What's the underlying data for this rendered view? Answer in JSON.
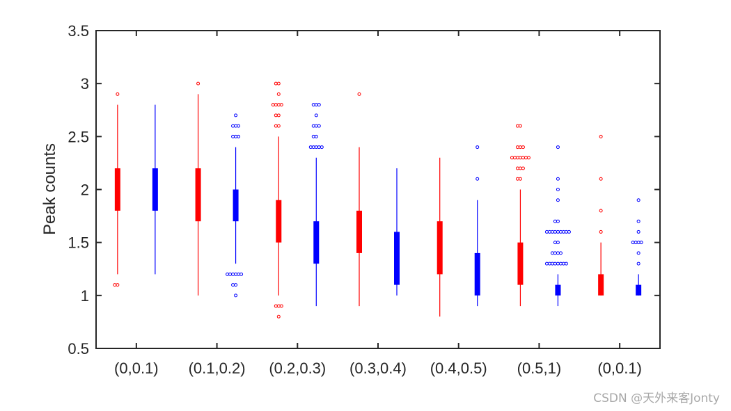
{
  "chart_data": {
    "type": "boxplot",
    "title": "",
    "xlabel": "",
    "ylabel": "Peak counts",
    "ylim": [
      0.5,
      3.5
    ],
    "yticks": [
      "0.5",
      "1",
      "1.5",
      "2",
      "2.5",
      "3",
      "3.5"
    ],
    "grid": false,
    "categories": [
      "(0,0.1)",
      "(0.1,0.2)",
      "(0.2,0.3)",
      "(0.3,0.4)",
      "(0.4,0.5)",
      "(0.5,1)",
      "(0,0.1)"
    ],
    "series": [
      {
        "color": "#ff0000",
        "boxes": [
          {
            "whisker_low": 1.2,
            "q1": 1.8,
            "median": 1.8,
            "q3": 2.2,
            "whisker_high": 2.8,
            "outliers": [
              1.1,
              1.1,
              2.9
            ]
          },
          {
            "whisker_low": 1.0,
            "q1": 1.7,
            "median": 1.7,
            "q3": 2.2,
            "whisker_high": 2.9,
            "outliers": [
              3.0
            ]
          },
          {
            "whisker_low": 1.0,
            "q1": 1.5,
            "median": 1.5,
            "q3": 1.9,
            "whisker_high": 2.5,
            "outliers": [
              3.0,
              3.0,
              2.8,
              2.8,
              2.8,
              2.8,
              2.9,
              2.7,
              2.7,
              2.6,
              2.6,
              0.9,
              0.9,
              0.9,
              0.8
            ]
          },
          {
            "whisker_low": 0.9,
            "q1": 1.4,
            "median": 1.4,
            "q3": 1.8,
            "whisker_high": 2.4,
            "outliers": [
              2.9
            ]
          },
          {
            "whisker_low": 0.8,
            "q1": 1.2,
            "median": 1.2,
            "q3": 1.7,
            "whisker_high": 2.3,
            "outliers": []
          },
          {
            "whisker_low": 0.9,
            "q1": 1.1,
            "median": 1.1,
            "q3": 1.5,
            "whisker_high": 2.0,
            "outliers": [
              2.6,
              2.6,
              2.4,
              2.4,
              2.4,
              2.3,
              2.3,
              2.3,
              2.3,
              2.3,
              2.3,
              2.3,
              2.2,
              2.2,
              2.2,
              2.1,
              2.1
            ]
          },
          {
            "whisker_low": 1.0,
            "q1": 1.0,
            "median": 1.0,
            "q3": 1.2,
            "whisker_high": 1.5,
            "outliers": [
              2.5,
              2.1,
              1.8,
              1.6
            ]
          }
        ]
      },
      {
        "color": "#0000ff",
        "boxes": [
          {
            "whisker_low": 1.2,
            "q1": 1.8,
            "median": 1.8,
            "q3": 2.2,
            "whisker_high": 2.8,
            "outliers": []
          },
          {
            "whisker_low": 1.3,
            "q1": 1.7,
            "median": 1.7,
            "q3": 2.0,
            "whisker_high": 2.4,
            "outliers": [
              2.7,
              2.6,
              2.6,
              2.6,
              2.5,
              2.5,
              2.5,
              1.2,
              1.2,
              1.2,
              1.2,
              1.2,
              1.2,
              1.1,
              1.1,
              1.0
            ]
          },
          {
            "whisker_low": 0.9,
            "q1": 1.3,
            "median": 1.3,
            "q3": 1.7,
            "whisker_high": 2.3,
            "outliers": [
              2.8,
              2.8,
              2.8,
              2.7,
              2.6,
              2.6,
              2.6,
              2.5,
              2.5,
              2.4,
              2.4,
              2.4,
              2.4,
              2.4
            ]
          },
          {
            "whisker_low": 1.0,
            "q1": 1.1,
            "median": 1.1,
            "q3": 1.6,
            "whisker_high": 2.2,
            "outliers": []
          },
          {
            "whisker_low": 0.9,
            "q1": 1.0,
            "median": 1.0,
            "q3": 1.4,
            "whisker_high": 1.9,
            "outliers": [
              2.4,
              2.1
            ]
          },
          {
            "whisker_low": 0.9,
            "q1": 1.0,
            "median": 1.0,
            "q3": 1.1,
            "whisker_high": 1.2,
            "outliers": [
              2.4,
              2.1,
              2.0,
              1.9,
              1.7,
              1.7,
              1.6,
              1.6,
              1.6,
              1.6,
              1.6,
              1.6,
              1.6,
              1.6,
              1.6,
              1.5,
              1.5,
              1.4,
              1.4,
              1.4,
              1.4,
              1.3,
              1.3,
              1.3,
              1.3,
              1.3,
              1.3,
              1.3,
              1.3
            ]
          },
          {
            "whisker_low": 1.0,
            "q1": 1.0,
            "median": 1.0,
            "q3": 1.1,
            "whisker_high": 1.2,
            "outliers": [
              1.9,
              1.7,
              1.6,
              1.5,
              1.5,
              1.5,
              1.5,
              1.4,
              1.3
            ]
          }
        ]
      }
    ]
  },
  "watermark": "CSDN @天外来客Jonty"
}
